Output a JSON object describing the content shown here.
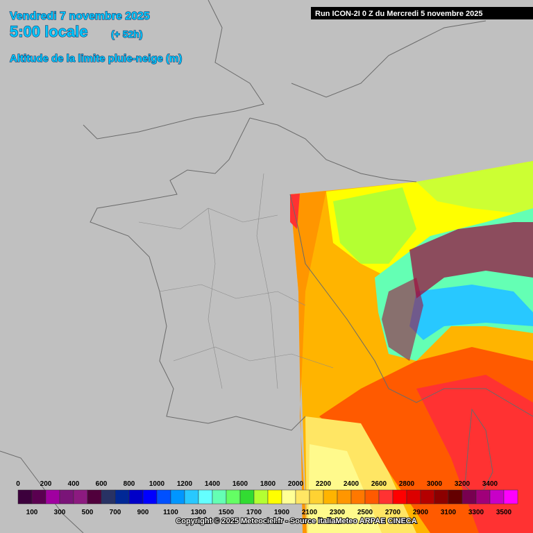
{
  "header": {
    "date": "Vendredi 7 novembre 2025",
    "time": "5:00 locale",
    "lead": "(+ 52h)",
    "parameter": "Altitude de la limite pluie-neige (m)",
    "run": "Run ICON-2I 0 Z du Mercredi 5 novembre 2025"
  },
  "legend": {
    "items": [
      {
        "value": 0,
        "color": "#3c003c"
      },
      {
        "value": 100,
        "color": "#5a0050"
      },
      {
        "value": 200,
        "color": "#a000a0"
      },
      {
        "value": 300,
        "color": "#7a1478"
      },
      {
        "value": 400,
        "color": "#8c1a80"
      },
      {
        "value": 500,
        "color": "#50003c"
      },
      {
        "value": 600,
        "color": "#283264"
      },
      {
        "value": 700,
        "color": "#002896"
      },
      {
        "value": 800,
        "color": "#0000c8"
      },
      {
        "value": 900,
        "color": "#0000ff"
      },
      {
        "value": 1000,
        "color": "#0050ff"
      },
      {
        "value": 1100,
        "color": "#0096ff"
      },
      {
        "value": 1200,
        "color": "#28c8ff"
      },
      {
        "value": 1300,
        "color": "#64ffff"
      },
      {
        "value": 1400,
        "color": "#64ffb4"
      },
      {
        "value": 1500,
        "color": "#64ff64"
      },
      {
        "value": 1600,
        "color": "#32dc32"
      },
      {
        "value": 1700,
        "color": "#b4ff32"
      },
      {
        "value": 1800,
        "color": "#ffff00"
      },
      {
        "value": 1900,
        "color": "#ffff96"
      },
      {
        "value": 2000,
        "color": "#ffe664"
      },
      {
        "value": 2100,
        "color": "#ffd232"
      },
      {
        "value": 2200,
        "color": "#ffb400"
      },
      {
        "value": 2300,
        "color": "#ff9600"
      },
      {
        "value": 2400,
        "color": "#ff7800"
      },
      {
        "value": 2500,
        "color": "#ff5a00"
      },
      {
        "value": 2600,
        "color": "#ff3232"
      },
      {
        "value": 2700,
        "color": "#ff0000"
      },
      {
        "value": 2800,
        "color": "#dc0000"
      },
      {
        "value": 2900,
        "color": "#b40000"
      },
      {
        "value": 3000,
        "color": "#8c0000"
      },
      {
        "value": 3100,
        "color": "#640000"
      },
      {
        "value": 3200,
        "color": "#780050"
      },
      {
        "value": 3300,
        "color": "#a0007a"
      },
      {
        "value": 3400,
        "color": "#c800c8"
      },
      {
        "value": 3500,
        "color": "#ff00ff"
      }
    ]
  },
  "footer": {
    "copyright": "Copyright © 2025 Meteociel.fr - Source italiaMeteo ARPAE CINECA"
  }
}
